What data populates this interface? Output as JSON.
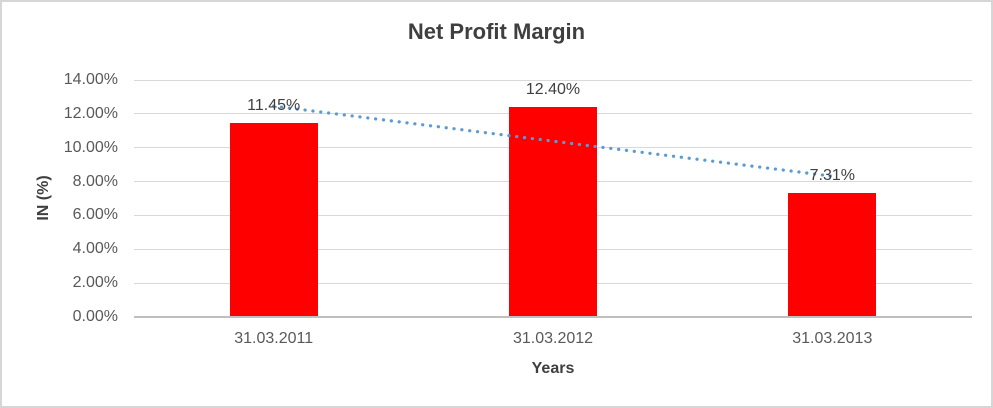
{
  "frame": {
    "background": "#FFFFFF",
    "border_color": "#D6D6D6"
  },
  "chart_data": {
    "type": "bar",
    "title": "Net Profit Margin",
    "xlabel": "Years",
    "ylabel": "IN (%)",
    "categories": [
      "31.03.2011",
      "31.03.2012",
      "31.03.2013"
    ],
    "series": [
      {
        "name": "Net Profit Margin",
        "color": "#FF0000",
        "values": [
          11.45,
          12.4,
          7.31
        ],
        "data_labels": [
          "11.45%",
          "12.40%",
          "7.31%"
        ]
      }
    ],
    "ylim": [
      0,
      14
    ],
    "y_tick_step": 2,
    "y_tick_labels": [
      "0.00%",
      "2.00%",
      "4.00%",
      "6.00%",
      "8.00%",
      "10.00%",
      "12.00%",
      "14.00%"
    ],
    "grid": true,
    "legend": false,
    "trendline": {
      "type": "linear",
      "line_style": "dotted",
      "color": "#5B9BD5",
      "start_value": 12.46,
      "end_value": 8.32
    },
    "styles": {
      "gridline_color": "#D9D9D9",
      "axis_line_color": "#BFBFBF",
      "title_color": "#3F3F3F",
      "tick_label_color": "#595959",
      "data_label_color": "#3F3F3F"
    }
  }
}
